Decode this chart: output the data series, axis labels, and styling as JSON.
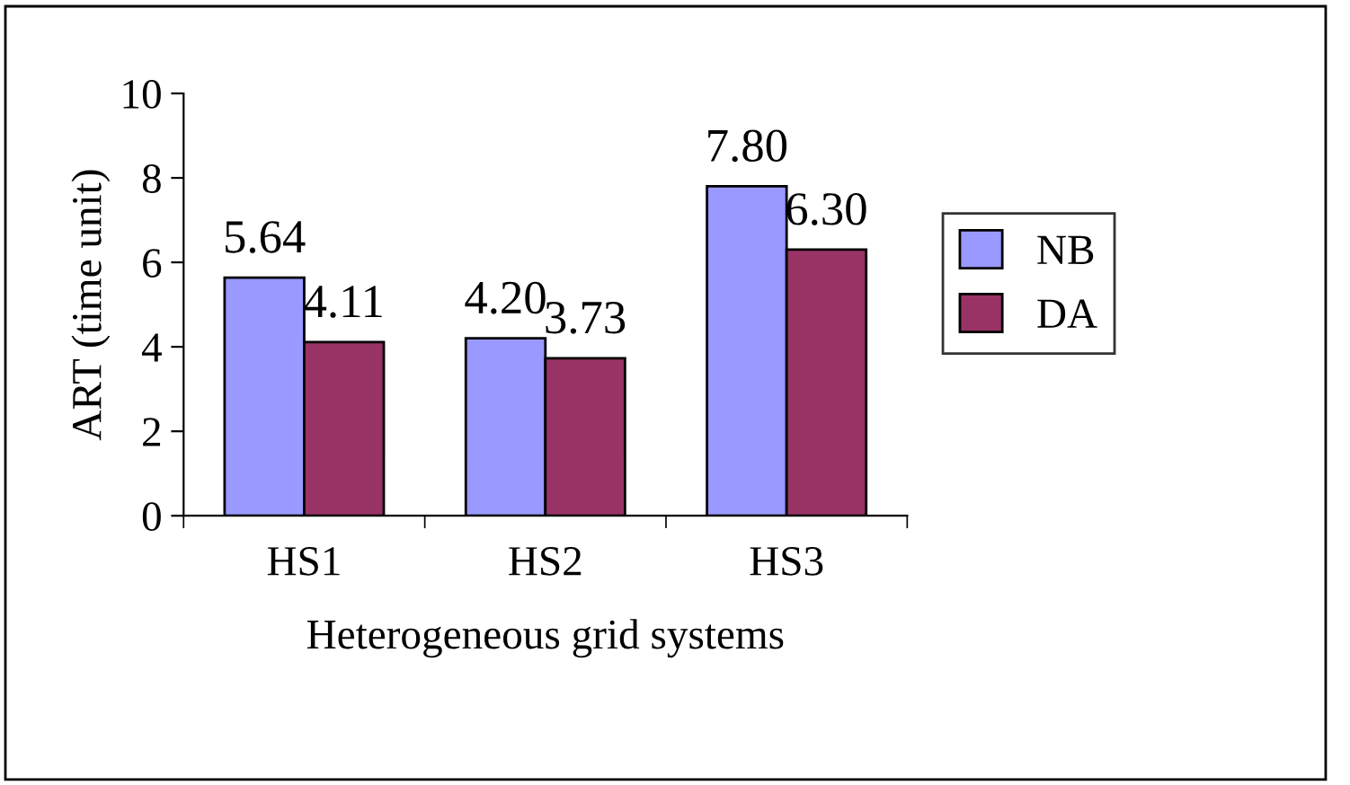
{
  "chart_data": {
    "type": "bar",
    "xlabel": "Heterogeneous grid systems",
    "ylabel": "ART (time unit)",
    "categories": [
      "HS1",
      "HS2",
      "HS3"
    ],
    "series": [
      {
        "name": "NB",
        "color": "#9999ff",
        "values": [
          5.64,
          4.2,
          7.8
        ],
        "value_labels": [
          "5.64",
          "4.20",
          "7.80"
        ]
      },
      {
        "name": "DA",
        "color": "#993366",
        "values": [
          4.11,
          3.73,
          6.3
        ],
        "value_labels": [
          "4.11",
          "3.73",
          "6.30"
        ]
      }
    ],
    "ylim": [
      0,
      10
    ],
    "yticks": [
      0,
      2,
      4,
      6,
      8,
      10
    ],
    "legend": "right",
    "grid": false
  }
}
